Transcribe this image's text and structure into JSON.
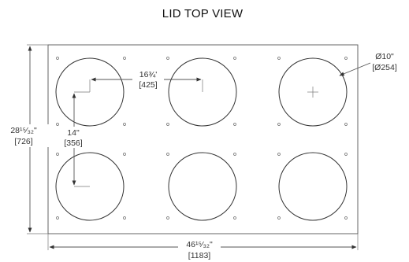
{
  "drawing": {
    "title": "LID TOP VIEW",
    "dimensions": {
      "width_in": "46¹⁵⁄₃₂\"",
      "width_mm": "[1183]",
      "height_in": "28¹⁵⁄₃₂\"",
      "height_mm": "[726]",
      "spacing_h_in": "16¾'",
      "spacing_h_mm": "[425]",
      "spacing_v_in": "14\"",
      "spacing_v_mm": "[356]",
      "hole_dia_in": "Ø10\"",
      "hole_dia_mm": "[Ø254]"
    }
  }
}
